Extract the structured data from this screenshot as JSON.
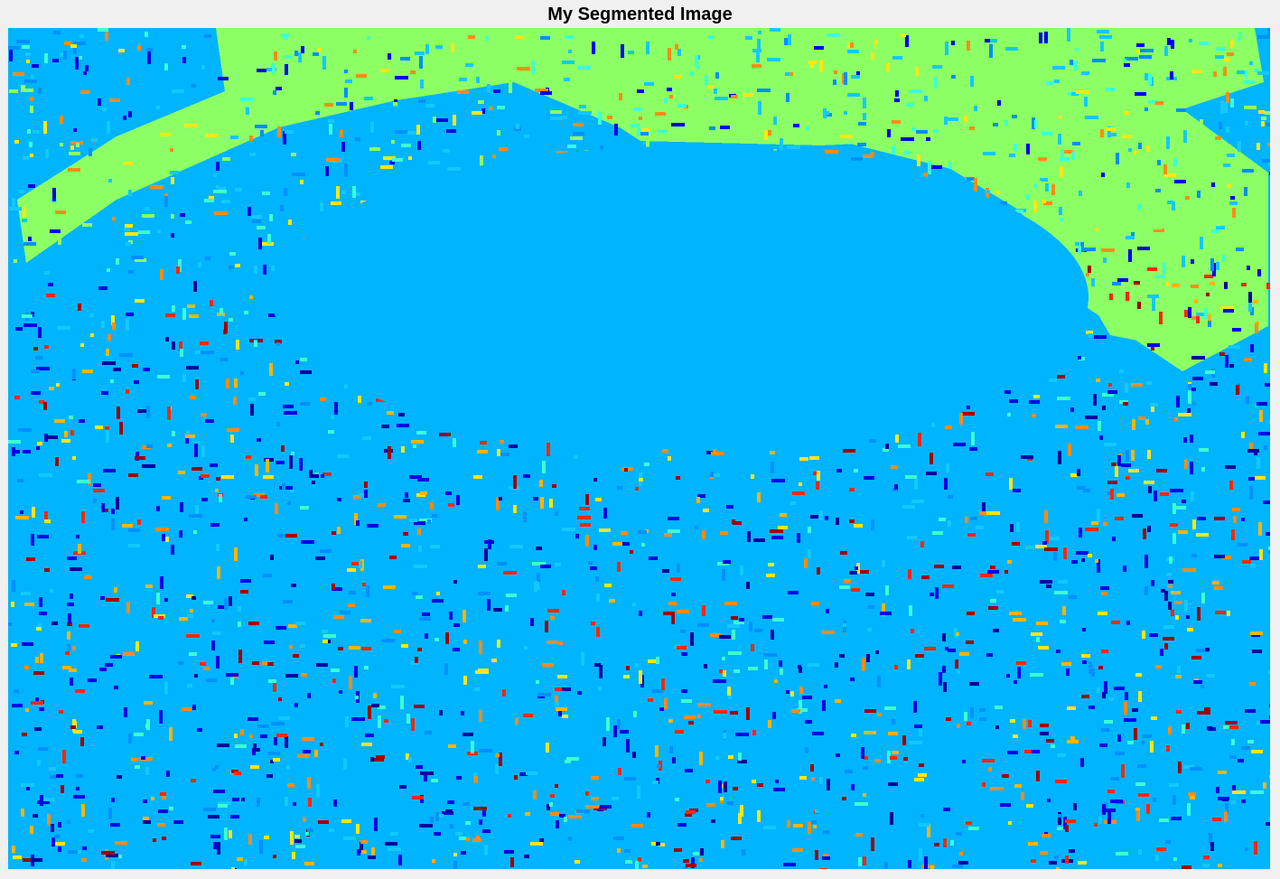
{
  "figure": {
    "title": "My Segmented Image"
  },
  "image": {
    "description_kind": "segmentation-label-map",
    "colormap": "jet",
    "palette": {
      "background": "#00b4ff",
      "green": "#8cff64",
      "lightblue": "#14c8ff",
      "cyan": "#3cffd0",
      "midblue": "#0090ff",
      "blue": "#0000e6",
      "navy": "#0000a0",
      "yellow": "#ffe614",
      "orange": "#ff8c14",
      "amber": "#ffb400",
      "red": "#ff2800",
      "darkred": "#a00000"
    }
  }
}
